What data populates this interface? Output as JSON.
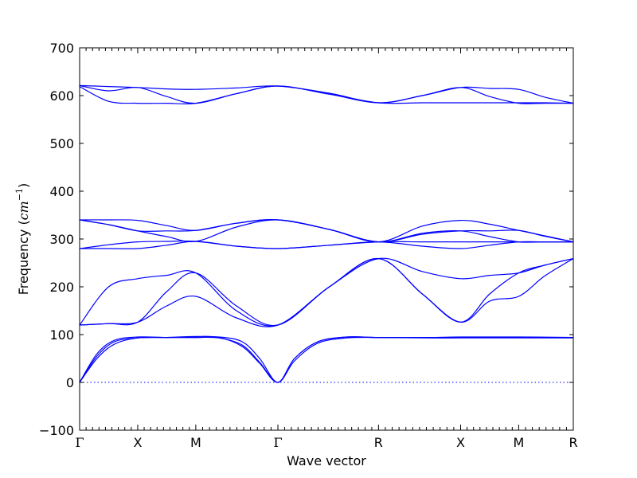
{
  "chart_data": {
    "type": "line",
    "xlabel": "Wave vector",
    "ylabel_text": "Frequency (",
    "ylabel_unit": "cm",
    "ylabel_exp": "−1",
    "ylabel_close": ")",
    "ylim": [
      -100,
      700
    ],
    "yticks": [
      -100,
      0,
      100,
      200,
      300,
      400,
      500,
      600,
      700
    ],
    "xlim": [
      0,
      8.5
    ],
    "high_symmetry_points": [
      {
        "label": "Γ",
        "x": 0
      },
      {
        "label": "X",
        "x": 1
      },
      {
        "label": "M",
        "x": 2
      },
      {
        "label": "Γ",
        "x": 3.414
      },
      {
        "label": "R",
        "x": 5.146
      },
      {
        "label": "X",
        "x": 6.56
      },
      {
        "label": "M",
        "x": 7.56
      },
      {
        "label": "R",
        "x": 8.5
      }
    ],
    "zero_line": true,
    "series": [
      {
        "x": [
          0,
          0.5,
          1,
          1.5,
          2,
          2.7,
          3.414,
          4.3,
          5.146,
          5.9,
          6.56,
          7.06,
          7.56,
          8.0,
          8.5
        ],
        "values": [
          621,
          619,
          617,
          614,
          613,
          616,
          620,
          605,
          585,
          600,
          617,
          615,
          613,
          597,
          584
        ]
      },
      {
        "x": [
          0,
          0.5,
          1,
          1.5,
          2,
          2.7,
          3.414,
          4.3,
          5.146,
          5.9,
          6.56,
          7.06,
          7.56,
          8.0,
          8.5
        ],
        "values": [
          621,
          610,
          617,
          598,
          584,
          604,
          620,
          603,
          585,
          600,
          617,
          598,
          584,
          584,
          584
        ]
      },
      {
        "x": [
          0,
          0.5,
          1,
          1.5,
          2,
          2.7,
          3.414,
          4.3,
          5.146,
          5.9,
          6.56,
          7.06,
          7.56,
          8.0,
          8.5
        ],
        "values": [
          619,
          588,
          584,
          584,
          584,
          604,
          620,
          603,
          585,
          585,
          585,
          585,
          585,
          585,
          584
        ]
      },
      {
        "x": [
          0,
          0.5,
          1,
          1.5,
          2,
          2.7,
          3.414,
          4.3,
          5.146,
          5.9,
          6.56,
          7.06,
          7.56,
          8.0,
          8.5
        ],
        "values": [
          340,
          340,
          339,
          328,
          318,
          333,
          340,
          320,
          294,
          327,
          339,
          331,
          318,
          307,
          294
        ]
      },
      {
        "x": [
          0,
          0.5,
          1,
          1.5,
          2,
          2.7,
          3.414,
          4.3,
          5.146,
          5.9,
          6.56,
          7.06,
          7.56,
          8.0,
          8.5
        ],
        "values": [
          340,
          330,
          317,
          317,
          318,
          333,
          340,
          320,
          294,
          310,
          317,
          317,
          318,
          306,
          294
        ]
      },
      {
        "x": [
          0,
          0.5,
          1,
          1.5,
          2,
          2.7,
          3.414,
          4.3,
          5.146,
          5.9,
          6.56,
          7.06,
          7.56,
          8.0,
          8.5
        ],
        "values": [
          340,
          330,
          317,
          305,
          295,
          325,
          340,
          320,
          294,
          312,
          317,
          305,
          294,
          294,
          294
        ]
      },
      {
        "x": [
          0,
          0.5,
          1,
          1.5,
          2,
          2.7,
          3.414,
          4.3,
          5.146,
          5.9,
          6.56,
          7.06,
          7.56,
          8.0,
          8.5
        ],
        "values": [
          280,
          288,
          294,
          295,
          295,
          285,
          280,
          287,
          294,
          294,
          294,
          294,
          294,
          294,
          294
        ]
      },
      {
        "x": [
          0,
          0.5,
          1,
          1.5,
          2,
          2.7,
          3.414,
          4.3,
          5.146,
          5.9,
          6.56,
          7.06,
          7.56,
          8.0,
          8.5
        ],
        "values": [
          280,
          280,
          280,
          287,
          295,
          285,
          280,
          287,
          294,
          285,
          280,
          287,
          294,
          294,
          294
        ]
      },
      {
        "x": [
          0,
          0.5,
          1,
          1.5,
          2,
          2.7,
          3.414,
          4.3,
          5.146,
          5.9,
          6.56,
          7.06,
          7.56,
          8.0,
          8.5
        ],
        "values": [
          120,
          200,
          217,
          224,
          229,
          150,
          120,
          200,
          259,
          232,
          217,
          224,
          229,
          245,
          259
        ]
      },
      {
        "x": [
          0,
          0.5,
          1,
          1.5,
          2,
          2.7,
          3.414,
          4.3,
          5.146,
          5.9,
          6.56,
          7.06,
          7.56,
          8.0,
          8.5
        ],
        "values": [
          120,
          123,
          126,
          190,
          229,
          160,
          120,
          200,
          259,
          185,
          126,
          185,
          229,
          245,
          259
        ]
      },
      {
        "x": [
          0,
          0.5,
          1,
          1.5,
          2,
          2.7,
          3.414,
          4.3,
          5.146,
          5.9,
          6.56,
          7.06,
          7.56,
          8.0,
          8.5
        ],
        "values": [
          120,
          123,
          126,
          160,
          180,
          135,
          120,
          200,
          259,
          185,
          126,
          170,
          180,
          222,
          259
        ]
      },
      {
        "x": [
          0,
          0.3,
          0.6,
          1,
          1.5,
          2,
          2.4,
          2.8,
          3.1,
          3.414,
          3.7,
          4.1,
          4.6,
          5.146,
          6.0,
          6.56,
          7.56,
          8.5
        ],
        "values": [
          0,
          60,
          88,
          95,
          94,
          94,
          95,
          85,
          50,
          0,
          50,
          85,
          95,
          94,
          94,
          95,
          95,
          94
        ]
      },
      {
        "x": [
          0,
          0.3,
          0.6,
          1,
          1.5,
          2,
          2.4,
          2.8,
          3.1,
          3.414,
          3.7,
          4.1,
          4.6,
          5.146,
          6.0,
          6.56,
          7.56,
          8.5
        ],
        "values": [
          0,
          55,
          85,
          93,
          94,
          96,
          94,
          75,
          40,
          0,
          50,
          85,
          95,
          94,
          94,
          94,
          94,
          94
        ]
      },
      {
        "x": [
          0,
          0.3,
          0.6,
          1,
          1.5,
          2,
          2.4,
          2.8,
          3.1,
          3.414,
          3.7,
          4.1,
          4.6,
          5.146,
          6.0,
          6.56,
          7.56,
          8.5
        ],
        "values": [
          0,
          50,
          80,
          93,
          94,
          94,
          93,
          78,
          42,
          0,
          45,
          82,
          93,
          94,
          93,
          93,
          93,
          93
        ]
      }
    ]
  }
}
